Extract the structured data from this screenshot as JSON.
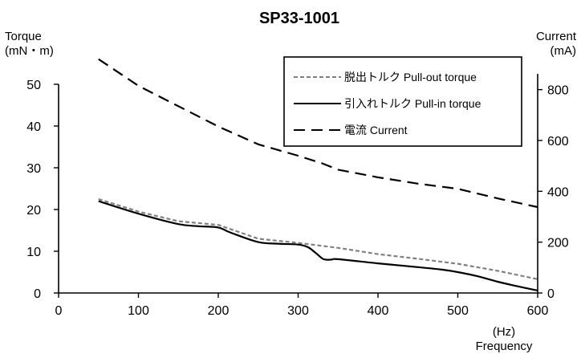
{
  "chart_data": {
    "type": "line",
    "title": "SP33-1001",
    "left_axis": {
      "title_line1": "Torque",
      "title_line2": "(mN・m)",
      "ticks": [
        0,
        10,
        20,
        30,
        40,
        50
      ],
      "range": [
        0,
        50
      ]
    },
    "right_axis": {
      "title_line1": "Current",
      "title_line2": "(mA)",
      "ticks": [
        0,
        200,
        400,
        600,
        800
      ],
      "range": [
        0,
        900
      ]
    },
    "x_axis": {
      "unit_label": "(Hz)",
      "title": "Frequency",
      "ticks": [
        0,
        100,
        200,
        300,
        400,
        500,
        600
      ],
      "range": [
        0,
        600
      ]
    },
    "legend_position": "top-right",
    "series": [
      {
        "name": "脱出トルク Pull-out torque",
        "axis": "left",
        "color": "#808080",
        "dash": "short",
        "x": [
          50,
          100,
          150,
          200,
          250,
          300,
          350,
          400,
          450,
          500,
          550,
          600
        ],
        "y": [
          22.5,
          19.5,
          17.2,
          16.3,
          13.0,
          12.0,
          10.8,
          9.3,
          8.2,
          7.0,
          5.3,
          3.3
        ]
      },
      {
        "name": "引入れトルク Pull-in torque",
        "axis": "left",
        "color": "#000000",
        "dash": "solid",
        "x": [
          50,
          100,
          150,
          175,
          200,
          215,
          250,
          275,
          300,
          312,
          322,
          332,
          342,
          350,
          400,
          450,
          480,
          500,
          525,
          550,
          575,
          600
        ],
        "y": [
          22.0,
          19.0,
          16.5,
          16.0,
          15.7,
          14.5,
          12.2,
          11.8,
          11.6,
          11.0,
          9.6,
          8.1,
          8.0,
          8.1,
          7.1,
          6.2,
          5.6,
          5.0,
          4.0,
          2.7,
          1.6,
          0.6
        ],
        "smooth": true
      },
      {
        "name": "電流 Current",
        "axis": "right",
        "color": "#000000",
        "dash": "long",
        "x": [
          50,
          100,
          150,
          200,
          250,
          300,
          330,
          350,
          400,
          450,
          500,
          550,
          600
        ],
        "y": [
          920,
          815,
          735,
          655,
          585,
          540,
          510,
          485,
          455,
          430,
          410,
          372,
          338
        ]
      }
    ]
  }
}
